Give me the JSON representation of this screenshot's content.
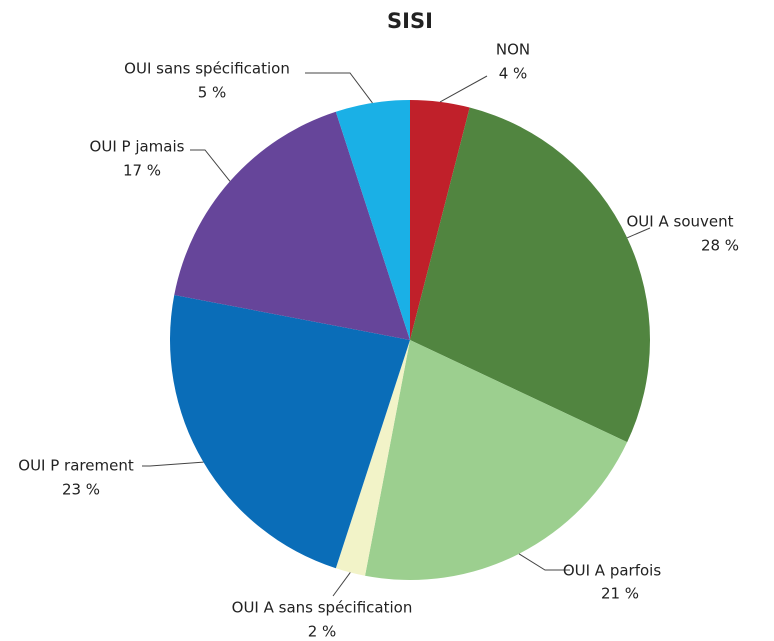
{
  "chart_data": {
    "type": "pie",
    "title": "SISI",
    "categories": [
      "NON",
      "OUI A souvent",
      "OUI A parfois",
      "OUI A sans spécification",
      "OUI P rarement",
      "OUI P jamais",
      "OUI sans spécification"
    ],
    "values": [
      4,
      28,
      21,
      2,
      23,
      17,
      5
    ],
    "value_labels": [
      "4 %",
      "28 %",
      "21 %",
      "2 %",
      "23 %",
      "17 %",
      "5 %"
    ],
    "colors": [
      "#c0202a",
      "#518540",
      "#9ccf8f",
      "#f2f3c8",
      "#0a6db8",
      "#66459a",
      "#1ab0e6"
    ]
  }
}
